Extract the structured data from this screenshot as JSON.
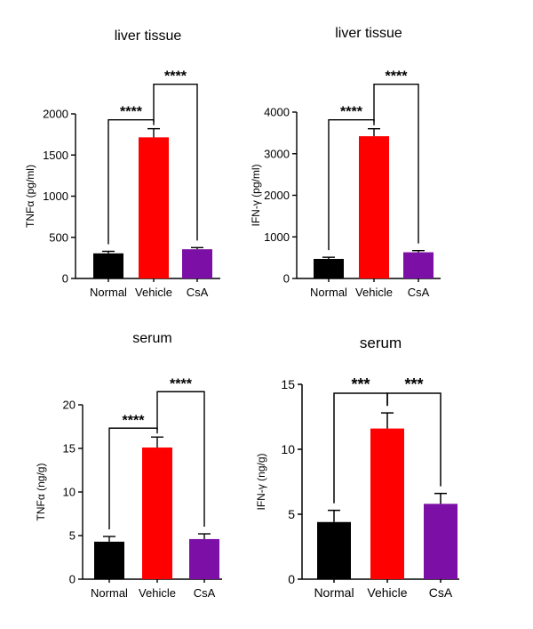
{
  "chart_data": [
    {
      "type": "bar",
      "title": "liver tissue",
      "ylabel": "TNFα (pg/ml)",
      "xlabel": "",
      "categories": [
        "Normal",
        "Vehicle",
        "CsA"
      ],
      "values": [
        305,
        1715,
        355
      ],
      "errors": [
        25,
        105,
        20
      ],
      "colors": [
        "#000000",
        "#ff0000",
        "#7b0fa6"
      ],
      "ylim": [
        0,
        2000
      ],
      "yticks": [
        0,
        500,
        1000,
        1500,
        2000
      ],
      "significance": [
        {
          "from": 0,
          "to": 1,
          "label": "****",
          "level": 1
        },
        {
          "from": 1,
          "to": 2,
          "label": "****",
          "level": 2
        }
      ]
    },
    {
      "type": "bar",
      "title": "liver tissue",
      "ylabel": "IFN-γ (pg/ml)",
      "xlabel": "",
      "categories": [
        "Normal",
        "Vehicle",
        "CsA"
      ],
      "values": [
        470,
        3420,
        630
      ],
      "errors": [
        40,
        180,
        40
      ],
      "colors": [
        "#000000",
        "#ff0000",
        "#7b0fa6"
      ],
      "ylim": [
        0,
        4000
      ],
      "yticks": [
        0,
        1000,
        2000,
        3000,
        4000
      ],
      "significance": [
        {
          "from": 0,
          "to": 1,
          "label": "****",
          "level": 1
        },
        {
          "from": 1,
          "to": 2,
          "label": "****",
          "level": 2
        }
      ]
    },
    {
      "type": "bar",
      "title": "serum",
      "ylabel": "TNFα (ng/g)",
      "xlabel": "",
      "categories": [
        "Normal",
        "Vehicle",
        "CsA"
      ],
      "values": [
        4.3,
        15.1,
        4.6
      ],
      "errors": [
        0.6,
        1.2,
        0.6
      ],
      "colors": [
        "#000000",
        "#ff0000",
        "#7b0fa6"
      ],
      "ylim": [
        0,
        20
      ],
      "yticks": [
        0,
        5,
        10,
        15,
        20
      ],
      "significance": [
        {
          "from": 0,
          "to": 1,
          "label": "****",
          "level": 1
        },
        {
          "from": 1,
          "to": 2,
          "label": "****",
          "level": 2
        }
      ]
    },
    {
      "type": "bar",
      "title": "serum",
      "ylabel": "IFN-γ (ng/g)",
      "xlabel": "",
      "categories": [
        "Normal",
        "Vehicle",
        "CsA"
      ],
      "values": [
        4.4,
        11.6,
        5.8
      ],
      "errors": [
        0.9,
        1.2,
        0.8
      ],
      "colors": [
        "#000000",
        "#ff0000",
        "#7b0fa6"
      ],
      "ylim": [
        0,
        15
      ],
      "yticks": [
        0,
        5,
        10,
        15
      ],
      "significance": [
        {
          "from": 0,
          "to": 1,
          "label": "***",
          "level": 1
        },
        {
          "from": 1,
          "to": 2,
          "label": "***",
          "level": 1
        }
      ]
    }
  ]
}
